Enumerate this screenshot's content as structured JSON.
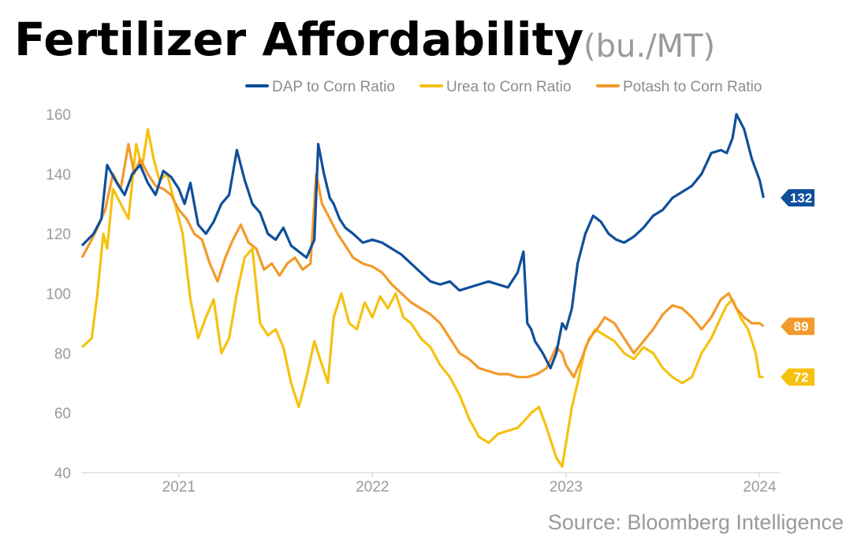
{
  "chart_data": {
    "type": "line",
    "title": "Fertilizer Affordability",
    "subtitle": "(bu./MT)",
    "source": "Source: Bloomberg Intelligence",
    "y_ticks": [
      "160",
      "140",
      "120",
      "100",
      "80",
      "60",
      "40"
    ],
    "ylim": [
      40,
      160
    ],
    "xlim": [
      2020.5,
      2024.1
    ],
    "x_ticks": [
      {
        "label": "2021",
        "value": 2021.0
      },
      {
        "label": "2022",
        "value": 2022.0
      },
      {
        "label": "2023",
        "value": 2023.0
      },
      {
        "label": "2024",
        "value": 2024.0
      }
    ],
    "grid": false,
    "legend_position": "top-right",
    "series": [
      {
        "name": "DAP to Corn Ratio",
        "color": "#0f4f9b",
        "end_label": "132",
        "x": [
          2020.5,
          2020.56,
          2020.6,
          2020.63,
          2020.68,
          2020.72,
          2020.76,
          2020.8,
          2020.84,
          2020.88,
          2020.92,
          2020.96,
          2021.0,
          2021.03,
          2021.06,
          2021.1,
          2021.14,
          2021.18,
          2021.22,
          2021.26,
          2021.3,
          2021.34,
          2021.38,
          2021.42,
          2021.46,
          2021.5,
          2021.54,
          2021.58,
          2021.62,
          2021.66,
          2021.7,
          2021.72,
          2021.75,
          2021.78,
          2021.8,
          2021.83,
          2021.86,
          2021.9,
          2021.95,
          2022.0,
          2022.05,
          2022.1,
          2022.15,
          2022.2,
          2022.25,
          2022.3,
          2022.35,
          2022.4,
          2022.45,
          2022.5,
          2022.55,
          2022.6,
          2022.65,
          2022.7,
          2022.75,
          2022.78,
          2022.8,
          2022.82,
          2022.84,
          2022.88,
          2022.92,
          2022.95,
          2022.98,
          2023.0,
          2023.03,
          2023.06,
          2023.1,
          2023.14,
          2023.18,
          2023.22,
          2023.26,
          2023.3,
          2023.35,
          2023.4,
          2023.45,
          2023.5,
          2023.55,
          2023.6,
          2023.65,
          2023.7,
          2023.75,
          2023.8,
          2023.83,
          2023.86,
          2023.88,
          2023.92,
          2023.96,
          2024.0,
          2024.02
        ],
        "values": [
          116,
          120,
          125,
          143,
          137,
          133,
          140,
          143,
          137,
          133,
          141,
          139,
          135,
          130,
          137,
          123,
          120,
          124,
          130,
          133,
          148,
          138,
          130,
          127,
          120,
          118,
          122,
          116,
          114,
          112,
          118,
          150,
          140,
          132,
          130,
          125,
          122,
          120,
          117,
          118,
          117,
          115,
          113,
          110,
          107,
          104,
          103,
          104,
          101,
          102,
          103,
          104,
          103,
          102,
          107,
          114,
          90,
          88,
          84,
          80,
          75,
          80,
          90,
          88,
          95,
          110,
          120,
          126,
          124,
          120,
          118,
          117,
          119,
          122,
          126,
          128,
          132,
          134,
          136,
          140,
          147,
          148,
          147,
          152,
          160,
          155,
          145,
          138,
          132
        ]
      },
      {
        "name": "Urea to Corn Ratio",
        "color": "#f5c211",
        "end_label": "72",
        "x": [
          2020.5,
          2020.55,
          2020.58,
          2020.61,
          2020.63,
          2020.66,
          2020.7,
          2020.74,
          2020.78,
          2020.81,
          2020.84,
          2020.87,
          2020.9,
          2020.94,
          2020.98,
          2021.02,
          2021.06,
          2021.1,
          2021.14,
          2021.18,
          2021.22,
          2021.26,
          2021.3,
          2021.34,
          2021.38,
          2021.42,
          2021.46,
          2021.5,
          2021.54,
          2021.58,
          2021.62,
          2021.66,
          2021.7,
          2021.73,
          2021.77,
          2021.8,
          2021.84,
          2021.88,
          2021.92,
          2021.96,
          2022.0,
          2022.04,
          2022.08,
          2022.12,
          2022.16,
          2022.2,
          2022.25,
          2022.3,
          2022.35,
          2022.4,
          2022.45,
          2022.5,
          2022.55,
          2022.6,
          2022.65,
          2022.7,
          2022.75,
          2022.78,
          2022.82,
          2022.86,
          2022.9,
          2022.95,
          2022.98,
          2023.0,
          2023.03,
          2023.06,
          2023.1,
          2023.15,
          2023.2,
          2023.25,
          2023.3,
          2023.35,
          2023.4,
          2023.45,
          2023.5,
          2023.55,
          2023.6,
          2023.65,
          2023.7,
          2023.75,
          2023.8,
          2023.83,
          2023.86,
          2023.9,
          2023.94,
          2023.98,
          2024.0,
          2024.02
        ],
        "values": [
          82,
          85,
          100,
          120,
          115,
          135,
          130,
          125,
          150,
          142,
          155,
          145,
          138,
          140,
          130,
          120,
          98,
          85,
          92,
          98,
          80,
          85,
          100,
          112,
          115,
          90,
          86,
          88,
          82,
          70,
          62,
          72,
          84,
          78,
          70,
          92,
          100,
          90,
          88,
          97,
          92,
          99,
          95,
          100,
          92,
          90,
          85,
          82,
          76,
          72,
          66,
          58,
          52,
          50,
          53,
          54,
          55,
          57,
          60,
          62,
          55,
          45,
          42,
          50,
          62,
          70,
          82,
          88,
          86,
          84,
          80,
          78,
          82,
          80,
          75,
          72,
          70,
          72,
          80,
          85,
          92,
          96,
          98,
          92,
          88,
          80,
          72,
          72
        ]
      },
      {
        "name": "Potash to Corn Ratio",
        "color": "#f39a2b",
        "end_label": "89",
        "x": [
          2020.5,
          2020.55,
          2020.58,
          2020.62,
          2020.66,
          2020.7,
          2020.74,
          2020.77,
          2020.8,
          2020.84,
          2020.88,
          2020.92,
          2020.96,
          2021.0,
          2021.04,
          2021.08,
          2021.12,
          2021.16,
          2021.2,
          2021.24,
          2021.28,
          2021.32,
          2021.36,
          2021.4,
          2021.44,
          2021.48,
          2021.52,
          2021.56,
          2021.6,
          2021.64,
          2021.68,
          2021.71,
          2021.74,
          2021.78,
          2021.82,
          2021.86,
          2021.9,
          2021.95,
          2022.0,
          2022.05,
          2022.1,
          2022.15,
          2022.2,
          2022.25,
          2022.3,
          2022.35,
          2022.4,
          2022.45,
          2022.5,
          2022.55,
          2022.6,
          2022.65,
          2022.7,
          2022.75,
          2022.8,
          2022.85,
          2022.9,
          2022.95,
          2022.98,
          2023.0,
          2023.04,
          2023.08,
          2023.12,
          2023.16,
          2023.2,
          2023.25,
          2023.3,
          2023.35,
          2023.4,
          2023.45,
          2023.5,
          2023.55,
          2023.6,
          2023.65,
          2023.7,
          2023.75,
          2023.8,
          2023.84,
          2023.88,
          2023.92,
          2023.96,
          2024.0,
          2024.02
        ],
        "values": [
          112,
          118,
          122,
          128,
          140,
          135,
          150,
          140,
          145,
          140,
          136,
          135,
          133,
          128,
          125,
          120,
          118,
          110,
          104,
          112,
          118,
          123,
          117,
          115,
          108,
          110,
          106,
          110,
          112,
          108,
          110,
          140,
          130,
          125,
          120,
          116,
          112,
          110,
          109,
          107,
          103,
          100,
          97,
          95,
          93,
          90,
          85,
          80,
          78,
          75,
          74,
          73,
          73,
          72,
          72,
          73,
          75,
          82,
          80,
          76,
          72,
          78,
          85,
          88,
          92,
          90,
          85,
          80,
          84,
          88,
          93,
          96,
          95,
          92,
          88,
          92,
          98,
          100,
          95,
          92,
          90,
          90,
          89
        ]
      }
    ]
  }
}
